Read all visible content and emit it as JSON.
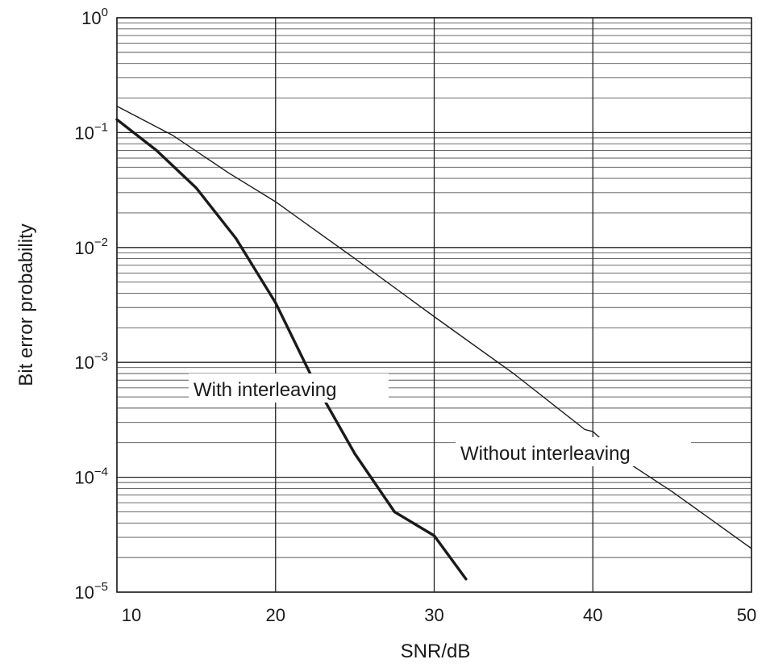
{
  "chart_data": {
    "type": "line",
    "title": "",
    "xlabel": "SNR/dB",
    "ylabel": "Bit error probability",
    "xlim": [
      10,
      50
    ],
    "ylim": [
      1e-05,
      1
    ],
    "yscale": "log",
    "grid": true,
    "x_ticks": [
      "10",
      "20",
      "30",
      "40",
      "50"
    ],
    "y_ticks": [
      {
        "base": "10",
        "exp": "0"
      },
      {
        "base": "10",
        "exp": "−1"
      },
      {
        "base": "10",
        "exp": "−2"
      },
      {
        "base": "10",
        "exp": "−3"
      },
      {
        "base": "10",
        "exp": "−4"
      },
      {
        "base": "10",
        "exp": "−5"
      }
    ],
    "series": [
      {
        "name": "With interleaving",
        "color": "#1a1a1a",
        "line_weight": "thick",
        "x": [
          10,
          12.5,
          15,
          17.5,
          20,
          22.5,
          25,
          27.5,
          30,
          32
        ],
        "y": [
          0.13,
          0.07,
          0.033,
          0.012,
          0.0033,
          0.00065,
          0.00016,
          5e-05,
          3.1e-05,
          1.3e-05
        ]
      },
      {
        "name": "Without interleaving",
        "color": "#1a1a1a",
        "line_weight": "thin",
        "x": [
          10,
          13.5,
          17,
          20,
          25,
          30,
          35,
          39.5,
          40,
          42,
          45,
          50
        ],
        "y": [
          0.17,
          0.095,
          0.045,
          0.025,
          0.008,
          0.0025,
          0.0008,
          0.00026,
          0.00025,
          0.00014,
          7.5e-05,
          2.4e-05
        ]
      }
    ],
    "annotations": [
      {
        "text": "With interleaving",
        "series": 0
      },
      {
        "text": "Without interleaving",
        "series": 1
      }
    ]
  }
}
